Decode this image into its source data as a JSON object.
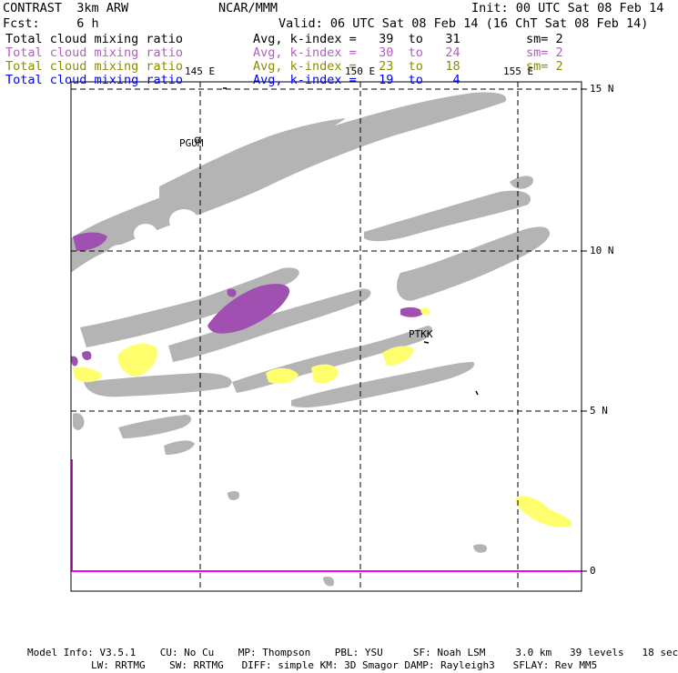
{
  "header": {
    "model_name": "CONTRAST  3km ARW",
    "center": "NCAR/MMM",
    "init": "Init: 00 UTC Sat 08 Feb 14",
    "fcst": "Fcst:     6 h",
    "valid": "Valid: 06 UTC Sat 08 Feb 14 (16 ChT Sat 08 Feb 14)"
  },
  "legend": [
    {
      "name": "Total cloud mixing ratio",
      "range": "Avg, k-index =   39  to   31",
      "sm": "sm= 2",
      "color": "#000000"
    },
    {
      "name": "Total cloud mixing ratio",
      "range": "Avg, k-index =   30  to   24",
      "sm": "sm= 2",
      "color": "#b060c0"
    },
    {
      "name": "Total cloud mixing ratio",
      "range": "Avg, k-index =   23  to   18",
      "sm": "sm= 2",
      "color": "#8c8c00"
    },
    {
      "name": "Total cloud mixing ratio",
      "range": "Avg, k-index =   19  to    4",
      "sm": "",
      "color": "#0000ff"
    }
  ],
  "map": {
    "longitude_labels": [
      "145 E",
      "150 E",
      "155 E"
    ],
    "latitude_labels": [
      "15 N",
      "10 N",
      "5 N",
      "0"
    ],
    "stations": [
      "PGUM",
      "PTKK"
    ],
    "colors": {
      "cloud_gray": "#b4b4b4",
      "cloud_purple": "#a050b0",
      "cloud_yellow": "#ffff6e",
      "equator": "#ff00ff"
    }
  },
  "footer": {
    "line1": "Model Info: V3.5.1    CU: No Cu    MP: Thompson    PBL: YSU     SF: Noah LSM     3.0 km   39 levels   18 sec",
    "line2": "LW: RRTMG    SW: RRTMG   DIFF: simple KM: 3D Smagor DAMP: Rayleigh3   SFLAY: Rev MM5"
  }
}
